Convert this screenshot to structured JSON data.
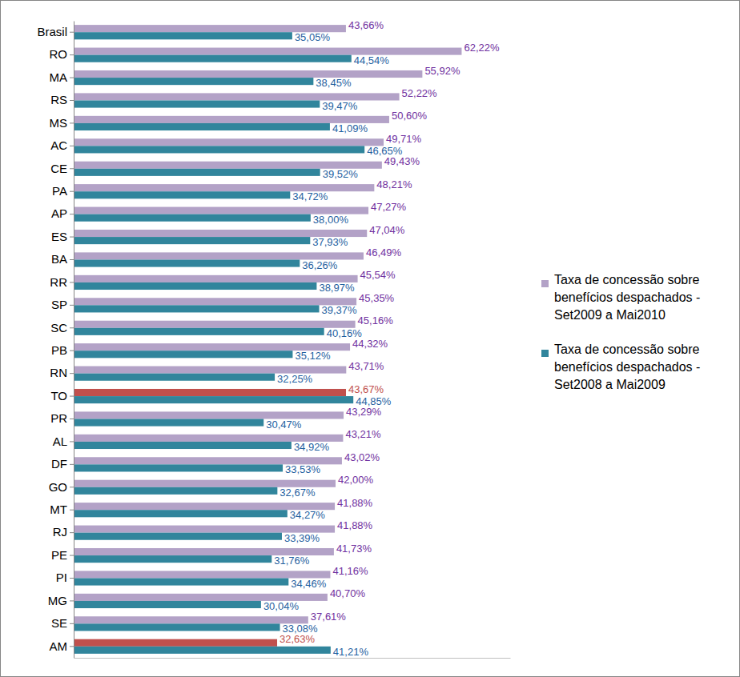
{
  "chart_data": {
    "type": "bar",
    "orientation": "horizontal",
    "categories": [
      "Brasil",
      "RO",
      "MA",
      "RS",
      "MS",
      "AC",
      "CE",
      "PA",
      "AP",
      "ES",
      "BA",
      "RR",
      "SP",
      "SC",
      "PB",
      "RN",
      "TO",
      "PR",
      "AL",
      "DF",
      "GO",
      "MT",
      "RJ",
      "PE",
      "PI",
      "MG",
      "SE",
      "AM"
    ],
    "series": [
      {
        "name": "Taxa de concessão sobre benefícios despachados - Set2009 a Mai2010",
        "color": "#b3a2c7",
        "colors": [
          "#b3a2c7",
          "#b3a2c7",
          "#b3a2c7",
          "#b3a2c7",
          "#b3a2c7",
          "#b3a2c7",
          "#b3a2c7",
          "#b3a2c7",
          "#b3a2c7",
          "#b3a2c7",
          "#b3a2c7",
          "#b3a2c7",
          "#b3a2c7",
          "#b3a2c7",
          "#b3a2c7",
          "#b3a2c7",
          "#c0504d",
          "#b3a2c7",
          "#b3a2c7",
          "#b3a2c7",
          "#b3a2c7",
          "#b3a2c7",
          "#b3a2c7",
          "#b3a2c7",
          "#b3a2c7",
          "#b3a2c7",
          "#b3a2c7",
          "#c0504d"
        ],
        "values": [
          43.66,
          62.22,
          55.92,
          52.22,
          50.6,
          49.71,
          49.43,
          48.21,
          47.27,
          47.04,
          46.49,
          45.54,
          45.35,
          45.16,
          44.32,
          43.71,
          43.67,
          43.29,
          43.21,
          43.02,
          42.0,
          41.88,
          41.88,
          41.73,
          41.16,
          40.7,
          37.61,
          32.63
        ],
        "value_labels": [
          "43,66%",
          "62,22%",
          "55,92%",
          "52,22%",
          "50,60%",
          "49,71%",
          "49,43%",
          "48,21%",
          "47,27%",
          "47,04%",
          "46,49%",
          "45,54%",
          "45,35%",
          "45,16%",
          "44,32%",
          "43,71%",
          "43,67%",
          "43,29%",
          "43,21%",
          "43,02%",
          "42,00%",
          "41,88%",
          "41,88%",
          "41,73%",
          "41,16%",
          "40,70%",
          "37,61%",
          "32,63%"
        ]
      },
      {
        "name": "Taxa de concessão sobre benefícios despachados - Set2008 a Mai2009",
        "color": "#31859c",
        "values": [
          35.05,
          44.54,
          38.45,
          39.47,
          41.09,
          46.65,
          39.52,
          34.72,
          38.0,
          37.93,
          36.26,
          38.97,
          39.37,
          40.16,
          35.12,
          32.25,
          44.85,
          30.47,
          34.92,
          33.53,
          32.67,
          34.27,
          33.39,
          31.76,
          34.46,
          30.04,
          33.08,
          41.21
        ],
        "value_labels": [
          "35,05%",
          "44,54%",
          "38,45%",
          "39,47%",
          "41,09%",
          "46,65%",
          "39,52%",
          "34,72%",
          "38,00%",
          "37,93%",
          "36,26%",
          "38,97%",
          "39,37%",
          "40,16%",
          "35,12%",
          "32,25%",
          "44,85%",
          "30,47%",
          "34,92%",
          "33,53%",
          "32,67%",
          "34,27%",
          "33,39%",
          "31,76%",
          "34,46%",
          "30,04%",
          "33,08%",
          "41,21%"
        ]
      }
    ],
    "xlim": [
      0,
      70
    ],
    "xticks": [],
    "grid": false,
    "data_labels": true,
    "tick_labels": "y",
    "legend": "right"
  }
}
